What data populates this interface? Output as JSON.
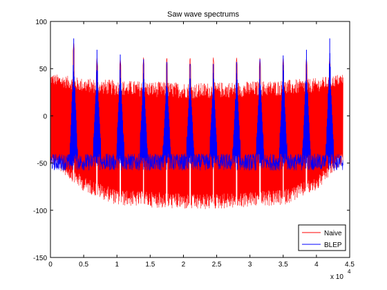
{
  "chart_data": {
    "type": "line",
    "title": "Saw wave spectrums",
    "xlabel": "",
    "ylabel": "",
    "xlim": [
      0,
      4.5
    ],
    "ylim": [
      -150,
      100
    ],
    "x_multiplier_label": "x 10",
    "x_multiplier_exponent": "4",
    "x_ticks": [
      0,
      0.5,
      1,
      1.5,
      2,
      2.5,
      3,
      3.5,
      4,
      4.5
    ],
    "x_tick_labels": [
      "0",
      "0.5",
      "1",
      "1.5",
      "2",
      "2.5",
      "3",
      "3.5",
      "4",
      "4.5"
    ],
    "y_ticks": [
      -150,
      -100,
      -50,
      0,
      50,
      100
    ],
    "y_tick_labels": [
      "-150",
      "-100",
      "-50",
      "0",
      "50",
      "100"
    ],
    "grid": false,
    "legend_position": "bottom-right",
    "harmonic_peak_x": [
      0.35,
      0.7,
      1.05,
      1.4,
      1.75,
      2.1,
      2.45,
      2.8,
      3.15,
      3.5,
      3.85,
      4.2
    ],
    "series": [
      {
        "name": "Naive",
        "color": "#ff0000",
        "x_range": [
          0,
          4.4
        ],
        "upper_envelope": [
          [
            0,
            45
          ],
          [
            0.5,
            40
          ],
          [
            1.0,
            38
          ],
          [
            2.2,
            35
          ],
          [
            3.5,
            38
          ],
          [
            4.0,
            40
          ],
          [
            4.4,
            45
          ]
        ],
        "lower_envelope": [
          [
            0,
            -50
          ],
          [
            0.5,
            -80
          ],
          [
            1.0,
            -95
          ],
          [
            2.2,
            -100
          ],
          [
            3.5,
            -95
          ],
          [
            4.0,
            -80
          ],
          [
            4.4,
            -50
          ]
        ],
        "peak_values": [
          78,
          62,
          62,
          62,
          62,
          62,
          62,
          62,
          62,
          62,
          62,
          62
        ]
      },
      {
        "name": "BLEP",
        "color": "#0000ff",
        "x_range": [
          0,
          4.4
        ],
        "noise_floor": -50,
        "noise_spread": [
          -58,
          -40
        ],
        "peak_values": [
          82,
          70,
          65,
          60,
          57,
          55,
          55,
          57,
          60,
          64,
          70,
          82
        ]
      }
    ]
  }
}
